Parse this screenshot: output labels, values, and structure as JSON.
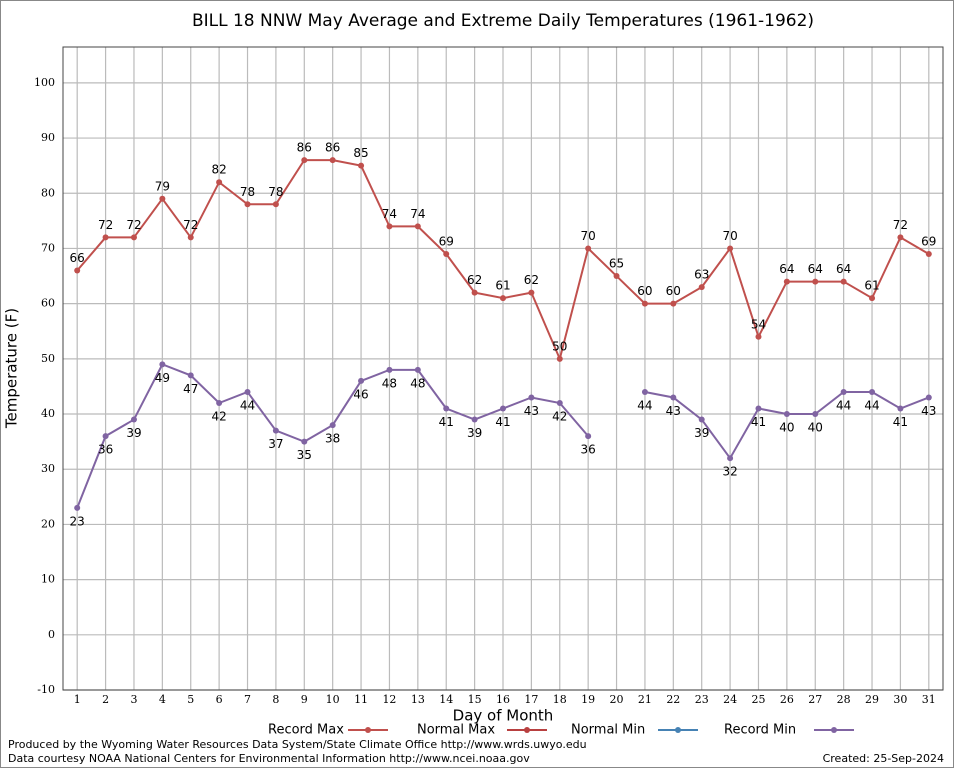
{
  "chart_data": {
    "type": "line",
    "title": "BILL 18 NNW May Average and Extreme Daily Temperatures (1961-1962)",
    "x_label": "Day of Month",
    "y_label": "Temperature (F)",
    "x": [
      1,
      2,
      3,
      4,
      5,
      6,
      7,
      8,
      9,
      10,
      11,
      12,
      13,
      14,
      15,
      16,
      17,
      18,
      19,
      20,
      21,
      22,
      23,
      24,
      25,
      26,
      27,
      28,
      29,
      30,
      31
    ],
    "xlim": [
      0.5,
      31.5
    ],
    "xticks": [
      1,
      2,
      3,
      4,
      5,
      6,
      7,
      8,
      9,
      10,
      11,
      12,
      13,
      14,
      15,
      16,
      17,
      18,
      19,
      20,
      21,
      22,
      23,
      24,
      25,
      26,
      27,
      28,
      29,
      30,
      31
    ],
    "ylim": [
      -10,
      106.5
    ],
    "yticks": [
      -10,
      0,
      10,
      20,
      30,
      40,
      50,
      60,
      70,
      80,
      90,
      100
    ],
    "grid": true,
    "series": [
      {
        "name": "Record Max",
        "color": "#c0504d",
        "values": [
          66,
          72,
          72,
          79,
          72,
          82,
          78,
          78,
          86,
          86,
          85,
          74,
          74,
          69,
          62,
          61,
          62,
          50,
          70,
          65,
          60,
          60,
          63,
          70,
          54,
          64,
          64,
          64,
          61,
          72,
          69
        ]
      },
      {
        "name": "Normal Max",
        "color": "#b84040",
        "values": [
          null,
          null,
          null,
          null,
          null,
          null,
          null,
          null,
          null,
          null,
          null,
          null,
          null,
          null,
          null,
          null,
          null,
          null,
          null,
          null,
          null,
          null,
          null,
          null,
          null,
          null,
          null,
          null,
          null,
          null,
          null
        ]
      },
      {
        "name": "Normal Min",
        "color": "#4682b4",
        "values": [
          null,
          null,
          null,
          null,
          null,
          null,
          null,
          null,
          null,
          null,
          null,
          null,
          null,
          null,
          null,
          null,
          null,
          null,
          null,
          null,
          null,
          null,
          null,
          null,
          null,
          null,
          null,
          null,
          null,
          null,
          null
        ]
      },
      {
        "name": "Record Min",
        "color": "#8064a2",
        "values": [
          23,
          36,
          39,
          49,
          47,
          42,
          44,
          37,
          35,
          38,
          46,
          48,
          48,
          41,
          39,
          41,
          43,
          42,
          36,
          null,
          44,
          43,
          39,
          32,
          41,
          40,
          40,
          44,
          44,
          41,
          43
        ]
      }
    ],
    "footer_left": [
      "Produced by the Wyoming Water Resources Data System/State Climate Office http://www.wrds.uwyo.edu",
      "Data courtesy NOAA National Centers for Environmental Information http://www.ncei.noaa.gov"
    ],
    "footer_right": "Created:  25-Sep-2024"
  }
}
